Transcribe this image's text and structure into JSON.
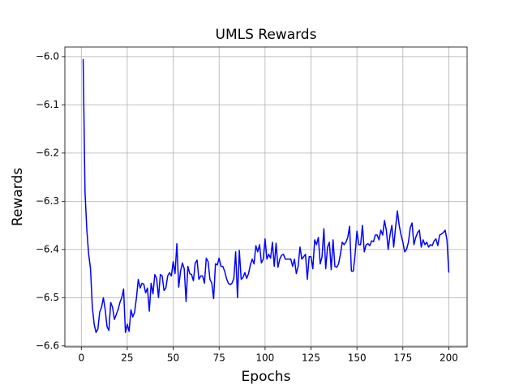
{
  "chart_data": {
    "type": "line",
    "title": "UMLS Rewards",
    "x_label": "Epochs",
    "y_label": "Rewards",
    "color": "#0000ff",
    "grid": true,
    "xlim": [
      -8.95,
      209.95
    ],
    "xticks": [
      0,
      25,
      50,
      75,
      100,
      125,
      150,
      175,
      200
    ],
    "ylim": [
      -6.602,
      -5.98
    ],
    "yticks": [
      {
        "value": -6.6,
        "label": "−6.6"
      },
      {
        "value": -6.5,
        "label": "−6.5"
      },
      {
        "value": -6.4,
        "label": "−6.4"
      },
      {
        "value": -6.3,
        "label": "−6.3"
      },
      {
        "value": -6.2,
        "label": "−6.2"
      },
      {
        "value": -6.1,
        "label": "−6.1"
      },
      {
        "value": -6.0,
        "label": "−6.0"
      }
    ],
    "x": [
      1,
      2,
      3,
      4,
      5,
      6,
      7,
      8,
      9,
      10,
      11,
      12,
      13,
      14,
      15,
      16,
      17,
      18,
      19,
      20,
      21,
      22,
      23,
      24,
      25,
      26,
      27,
      28,
      29,
      30,
      31,
      32,
      33,
      34,
      35,
      36,
      37,
      38,
      39,
      40,
      41,
      42,
      43,
      44,
      45,
      46,
      47,
      48,
      49,
      50,
      51,
      52,
      53,
      54,
      55,
      56,
      57,
      58,
      59,
      60,
      61,
      62,
      63,
      64,
      65,
      66,
      67,
      68,
      69,
      70,
      71,
      72,
      73,
      74,
      75,
      76,
      77,
      78,
      79,
      80,
      81,
      82,
      83,
      84,
      85,
      86,
      87,
      88,
      89,
      90,
      91,
      92,
      93,
      94,
      95,
      96,
      97,
      98,
      99,
      100,
      101,
      102,
      103,
      104,
      105,
      106,
      107,
      108,
      109,
      110,
      111,
      112,
      113,
      114,
      115,
      116,
      117,
      118,
      119,
      120,
      121,
      122,
      123,
      124,
      125,
      126,
      127,
      128,
      129,
      130,
      131,
      132,
      133,
      134,
      135,
      136,
      137,
      138,
      139,
      140,
      141,
      142,
      143,
      144,
      145,
      146,
      147,
      148,
      149,
      150,
      151,
      152,
      153,
      154,
      155,
      156,
      157,
      158,
      159,
      160,
      161,
      162,
      163,
      164,
      165,
      166,
      167,
      168,
      169,
      170,
      171,
      172,
      173,
      174,
      175,
      176,
      177,
      178,
      179,
      180,
      181,
      182,
      183,
      184,
      185,
      186,
      187,
      188,
      189,
      190,
      191,
      192,
      193,
      194,
      195,
      196,
      197,
      198,
      199,
      200
    ],
    "values": [
      -6.005,
      -6.28,
      -6.36,
      -6.41,
      -6.44,
      -6.52,
      -6.555,
      -6.572,
      -6.565,
      -6.53,
      -6.52,
      -6.5,
      -6.525,
      -6.56,
      -6.568,
      -6.51,
      -6.52,
      -6.545,
      -6.535,
      -6.525,
      -6.51,
      -6.5,
      -6.482,
      -6.572,
      -6.555,
      -6.57,
      -6.525,
      -6.54,
      -6.53,
      -6.5,
      -6.462,
      -6.48,
      -6.47,
      -6.472,
      -6.49,
      -6.48,
      -6.528,
      -6.47,
      -6.492,
      -6.452,
      -6.46,
      -6.5,
      -6.452,
      -6.455,
      -6.485,
      -6.48,
      -6.455,
      -6.448,
      -6.455,
      -6.425,
      -6.45,
      -6.388,
      -6.478,
      -6.445,
      -6.428,
      -6.44,
      -6.508,
      -6.435,
      -6.45,
      -6.452,
      -6.465,
      -6.428,
      -6.422,
      -6.462,
      -6.455,
      -6.455,
      -6.47,
      -6.418,
      -6.425,
      -6.462,
      -6.47,
      -6.502,
      -6.43,
      -6.432,
      -6.418,
      -6.435,
      -6.435,
      -6.445,
      -6.46,
      -6.47,
      -6.473,
      -6.47,
      -6.46,
      -6.405,
      -6.5,
      -6.402,
      -6.462,
      -6.458,
      -6.448,
      -6.46,
      -6.45,
      -6.432,
      -6.42,
      -6.43,
      -6.392,
      -6.405,
      -6.39,
      -6.428,
      -6.42,
      -6.378,
      -6.42,
      -6.41,
      -6.418,
      -6.385,
      -6.435,
      -6.387,
      -6.437,
      -6.42,
      -6.412,
      -6.41,
      -6.42,
      -6.42,
      -6.42,
      -6.42,
      -6.435,
      -6.42,
      -6.45,
      -6.435,
      -6.395,
      -6.42,
      -6.415,
      -6.41,
      -6.462,
      -6.415,
      -6.415,
      -6.44,
      -6.38,
      -6.39,
      -6.375,
      -6.43,
      -6.415,
      -6.357,
      -6.44,
      -6.395,
      -6.385,
      -6.442,
      -6.38,
      -6.435,
      -6.437,
      -6.43,
      -6.41,
      -6.385,
      -6.39,
      -6.385,
      -6.375,
      -6.352,
      -6.445,
      -6.445,
      -6.41,
      -6.362,
      -6.39,
      -6.39,
      -6.35,
      -6.405,
      -6.39,
      -6.388,
      -6.392,
      -6.382,
      -6.384,
      -6.37,
      -6.37,
      -6.38,
      -6.36,
      -6.37,
      -6.34,
      -6.36,
      -6.4,
      -6.37,
      -6.35,
      -6.395,
      -6.355,
      -6.32,
      -6.35,
      -6.37,
      -6.385,
      -6.405,
      -6.4,
      -6.385,
      -6.355,
      -6.345,
      -6.39,
      -6.375,
      -6.365,
      -6.36,
      -6.395,
      -6.38,
      -6.39,
      -6.385,
      -6.395,
      -6.39,
      -6.392,
      -6.382,
      -6.378,
      -6.392,
      -6.37,
      -6.368,
      -6.365,
      -6.36,
      -6.38,
      -6.448
    ]
  }
}
